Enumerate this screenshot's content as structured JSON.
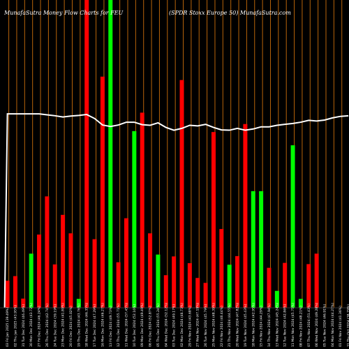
{
  "chart_data": {
    "type": "bar",
    "title_left": "MunafaSutra  Money Flow  Charts for FEU",
    "title_right": "(SPDR Stoxx Europe   50) MunafaSutra.com",
    "colors": {
      "up": "#00ff00",
      "down": "#ff0000",
      "grid": "#b8640a",
      "line": "#ffffff",
      "background": "#000000"
    },
    "grid": true,
    "ylim": [
      0,
      100
    ],
    "categories": [
      "03 Fri Jan 2025 (39.49%)",
      "02 Thu Jan 2025 (43.95%)",
      "31 Tue Dec 2024 (46.49%)",
      "30 Mon Dec 2024 (43.72%)",
      "27 Fri Dec 2024 (46.24%)",
      "26 Thu Dec 2024 (42.74%)",
      "24 Tue Dec 2024 (39.19%)",
      "23 Mon Dec 2024 (41.89%)",
      "20 Fri Dec 2024 (45.02%)",
      "19 Thu Dec 2024 (43.76%)",
      "18 Wed Dec 2024 (46.35%)",
      "17 Tue Dec 2024 (47.29%)",
      "16 Mon Dec 2024 (46.27%)",
      "13 Fri Dec 2024 (49.73%)",
      "12 Thu Dec 2024 (55.71%)",
      "11 Wed Dec 2024 (57.45%)",
      "10 Tue Dec 2024 (52.16%)",
      "09 Mon Dec 2024 (49.49%)",
      "06 Fri Dec 2024 (52.87%)",
      "05 Thu Dec 2024 (55.24%)",
      "04 Wed Dec 2024 (52.12%)",
      "03 Tue Dec 2024 (49.17%)",
      "02 Mon Dec 2024 (46.73%)",
      "29 Fri Nov 2024 (43.68%)",
      "27 Wed Nov 2024 (47.19%)",
      "26 Tue Nov 2024 (45.79%)",
      "25 Mon Nov 2024 (48.39%)",
      "22 Fri Nov 2024 (46.44%)",
      "21 Thu Nov 2024 (44.55%)",
      "20 Wed Nov 2024 (47.82%)",
      "19 Tue Nov 2024 (45.43%)",
      "18 Mon Nov 2024 (42.95%)",
      "15 Fri Nov 2024 (44.29%)",
      "14 Thu Nov 2024 (47.94%)",
      "13 Wed Nov 2024 (45.24%)",
      "12 Tue Nov 2024 (42.86%)",
      "11 Mon Nov 2024 (45.75%)",
      "08 Fri Nov 2024 (48.21%)",
      "07 Thu Nov 2024 (51.43%)",
      "06 Wed Nov 2024 (49.28%)",
      "05 Tue Nov 2024 (46.91%)",
      "04 Mon Nov 2024 (44.27%)",
      "01 Fri Nov 2024 (41.36%)",
      "31 Thu Oct 2024 (38.79%)"
    ],
    "values": [
      8.8,
      10.3,
      3.0,
      17.6,
      23.8,
      36.2,
      14.1,
      30.2,
      24.2,
      2.9,
      100,
      22.3,
      75.1,
      100,
      14.8,
      29.1,
      57.4,
      63.4,
      24.2,
      17.3,
      10.6,
      16.7,
      74.0,
      14.5,
      9.7,
      8.1,
      57.1,
      25.6,
      14.0,
      16.8,
      59.7,
      37.9,
      37.9,
      13.0,
      5.5,
      14.6,
      52.8,
      2.9,
      14.2,
      17.6,
      0,
      0,
      0,
      0
    ],
    "directions": [
      "down",
      "down",
      "down",
      "up",
      "down",
      "down",
      "down",
      "down",
      "down",
      "up",
      "down",
      "down",
      "down",
      "up",
      "down",
      "down",
      "up",
      "down",
      "down",
      "up",
      "down",
      "down",
      "down",
      "down",
      "down",
      "down",
      "down",
      "down",
      "up",
      "down",
      "down",
      "up",
      "up",
      "down",
      "up",
      "down",
      "up",
      "up",
      "down",
      "down",
      "down",
      "down",
      "down",
      "down"
    ],
    "line": [
      63,
      63,
      63,
      63,
      63,
      62.7,
      62.4,
      62,
      62.3,
      62.5,
      62.8,
      61.5,
      59.4,
      58.9,
      59.4,
      60.3,
      60.3,
      59.5,
      59.3,
      60.1,
      58.6,
      57.7,
      58.3,
      59.3,
      59.1,
      59.6,
      58.6,
      57.8,
      57.7,
      58.3,
      57.7,
      58.1,
      58.8,
      58.8,
      59.3,
      59.6,
      59.9,
      60.3,
      60.9,
      60.7,
      61.0,
      61.7,
      62.2,
      62.4
    ]
  }
}
